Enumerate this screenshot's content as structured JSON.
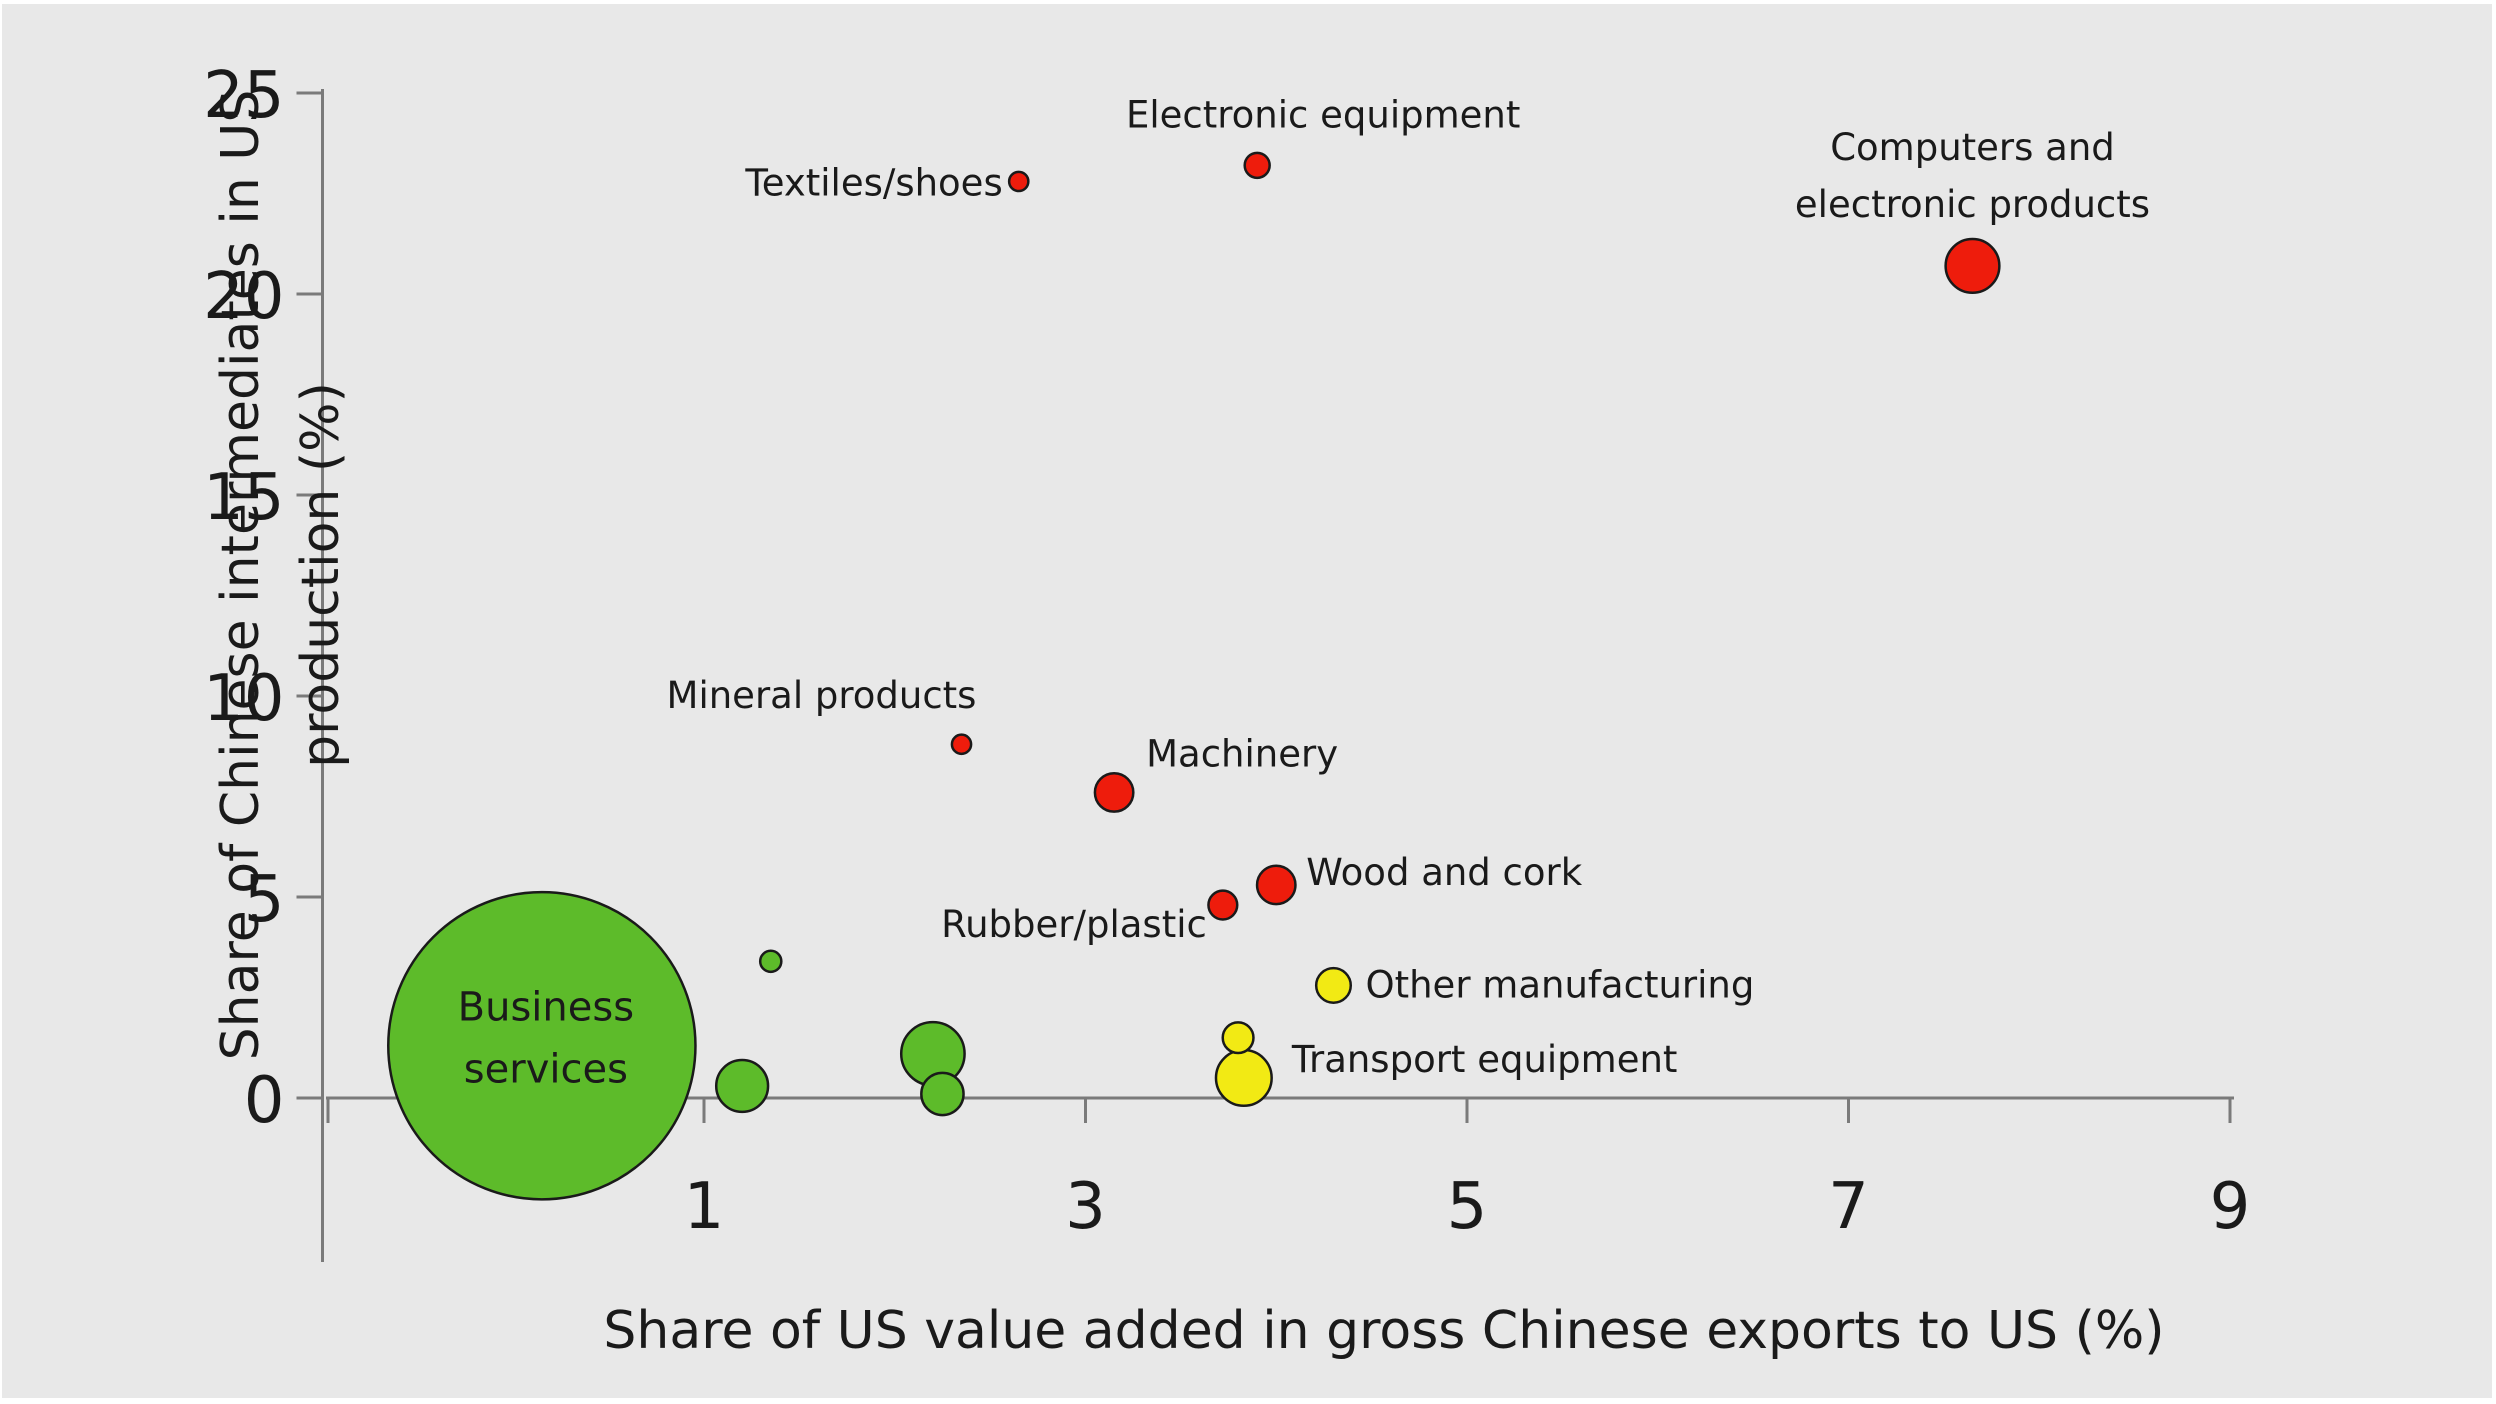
{
  "chart_data": {
    "type": "scatter",
    "title": "",
    "xlabel": "Share of US value added in gross Chinese exports to US (%)",
    "ylabel_lines": [
      "Share of Chinese intermediates in US",
      "production (%)"
    ],
    "xlim": [
      -1,
      9
    ],
    "ylim": [
      0,
      25
    ],
    "x_ticks": [
      1,
      3,
      5,
      7,
      9
    ],
    "y_ticks": [
      0,
      5,
      10,
      15,
      20,
      25
    ],
    "colors": {
      "red": "#ee1c0c",
      "yellow": "#f2ea14",
      "green": "#5dbb2a"
    },
    "points": [
      {
        "x": 2.65,
        "y": 22.8,
        "size": 1,
        "color": "red",
        "label_lines": [
          "Textiles/shoes"
        ]
      },
      {
        "x": 3.9,
        "y": 23.2,
        "size": 1.3,
        "color": "red",
        "label_lines": [
          "Electronic equipment"
        ]
      },
      {
        "x": 7.65,
        "y": 20.7,
        "size": 2.8,
        "color": "red",
        "label_lines": [
          "Computers and",
          "electronic products"
        ]
      },
      {
        "x": 2.35,
        "y": 8.8,
        "size": 1,
        "color": "red",
        "label_lines": [
          "Mineral products"
        ]
      },
      {
        "x": 3.15,
        "y": 7.6,
        "size": 2,
        "color": "red",
        "label_lines": [
          "Machinery"
        ]
      },
      {
        "x": 3.72,
        "y": 4.8,
        "size": 1.5,
        "color": "red",
        "label_lines": [
          "Rubber/plastic"
        ]
      },
      {
        "x": 4.0,
        "y": 5.3,
        "size": 2,
        "color": "red",
        "label_lines": [
          "Wood and cork"
        ]
      },
      {
        "x": 4.3,
        "y": 2.8,
        "size": 1.8,
        "color": "yellow",
        "label_lines": [
          "Other manufacturing"
        ]
      },
      {
        "x": 3.8,
        "y": 1.5,
        "size": 1.6,
        "color": "yellow",
        "label_lines": []
      },
      {
        "x": 3.83,
        "y": 0.5,
        "size": 2.9,
        "color": "yellow",
        "label_lines": [
          "Transport equipment"
        ]
      },
      {
        "x": 1.35,
        "y": 3.4,
        "size": 1.1,
        "color": "green",
        "label_lines": []
      },
      {
        "x": 2.2,
        "y": 1.1,
        "size": 3.3,
        "color": "green",
        "label_lines": []
      },
      {
        "x": 1.2,
        "y": 0.3,
        "size": 2.7,
        "color": "green",
        "label_lines": []
      },
      {
        "x": 2.25,
        "y": 0.1,
        "size": 2.2,
        "color": "green",
        "label_lines": []
      },
      {
        "x": 0.15,
        "y": 1.3,
        "size": 16,
        "color": "green",
        "label_lines": [
          "Business",
          "services"
        ]
      }
    ]
  }
}
